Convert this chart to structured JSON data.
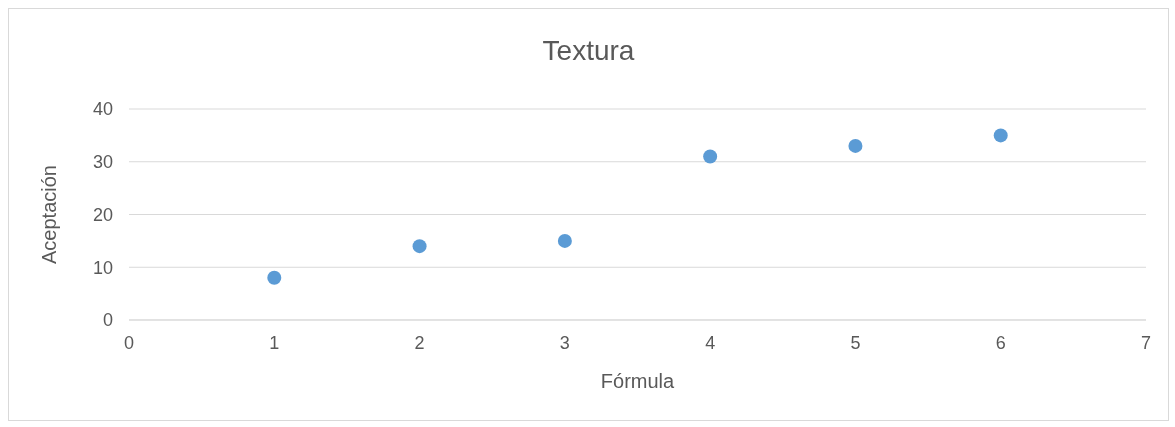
{
  "chart_data": {
    "type": "scatter",
    "title": "Textura",
    "xlabel": "Fórmula",
    "ylabel": "Aceptación",
    "x": [
      1,
      2,
      3,
      4,
      5,
      6
    ],
    "values": [
      8,
      14,
      15,
      31,
      33,
      35
    ],
    "color": "#5b9bd5",
    "xlim": [
      0,
      7
    ],
    "xticks": [
      0,
      1,
      2,
      3,
      4,
      5,
      6,
      7
    ],
    "ylim": [
      0,
      40
    ],
    "yticks": [
      0,
      10,
      20,
      30,
      40
    ],
    "grid": "y",
    "marker": "circle"
  }
}
